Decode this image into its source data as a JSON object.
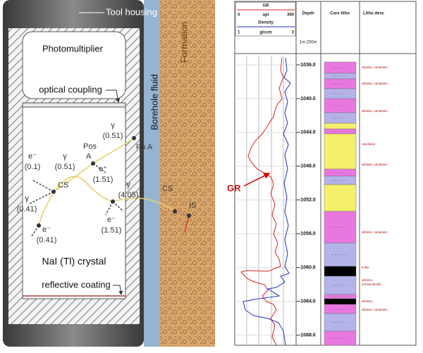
{
  "diagram": {
    "tool_housing": "Tool housing",
    "photomultiplier": "Photomultiplier",
    "optical_coupling": "optical coupling",
    "borehole_fluid": "Borehole fluid",
    "formation": "Formation",
    "crystal": "NaI (Tl) crystal",
    "reflective_coating": "reflective coating",
    "particles": [
      {
        "symbol": "γ",
        "energy": "(0.51)"
      },
      {
        "symbol": "e⁻",
        "energy": "(0.1)"
      },
      {
        "symbol": "γ",
        "energy": "(0.51)"
      },
      {
        "symbol": "e⁺",
        "energy": "(1.51)"
      },
      {
        "symbol": "γ",
        "energy": "(0.41)"
      },
      {
        "symbol": "e⁻",
        "energy": "(0.41)"
      },
      {
        "symbol": "γ",
        "energy": "(4.05)"
      },
      {
        "symbol": "e⁻",
        "energy": "(1.51)"
      }
    ],
    "nodes": {
      "ph_a": "Ph A",
      "pos": "Pos",
      "a": "A",
      "cs_1": "CS",
      "cs_2": "CS",
      "is": "IS"
    }
  },
  "log": {
    "gr": {
      "name": "GR",
      "min": "0",
      "unit": "api",
      "max": "300"
    },
    "density": {
      "name": "Density",
      "min": "1",
      "unit": "g/ccm",
      "max": "3"
    },
    "depth_title": "Depth",
    "scale": "1m:200m",
    "core_litho": "Core litho",
    "litho_desc_title": "Litho desc",
    "gr_label": "GR",
    "ylim": [
      1035,
      1069.2
    ],
    "depth_ticks": [
      {
        "value": 1036,
        "label": "1036.0"
      },
      {
        "value": 1040,
        "label": "1040.0"
      },
      {
        "value": 1044,
        "label": "1044.0"
      },
      {
        "value": 1048,
        "label": "1048.0"
      },
      {
        "value": 1052,
        "label": "1052.0"
      },
      {
        "value": 1056,
        "label": "1056.0"
      },
      {
        "value": 1060,
        "label": "1060.0"
      },
      {
        "value": 1064,
        "label": "1064.0"
      },
      {
        "value": 1068,
        "label": "1068.0"
      }
    ],
    "litho_desc": [
      "siltstein, sandstein",
      "siltstein, sandstein",
      "siltstein, sandstein",
      "sandstein",
      "siltstein, sandstein",
      "siltstein, sandstein",
      "kohle",
      "siltstein,",
      "tonstein/kohle",
      "siltstein,",
      "siltstein, sandstein"
    ]
  }
}
